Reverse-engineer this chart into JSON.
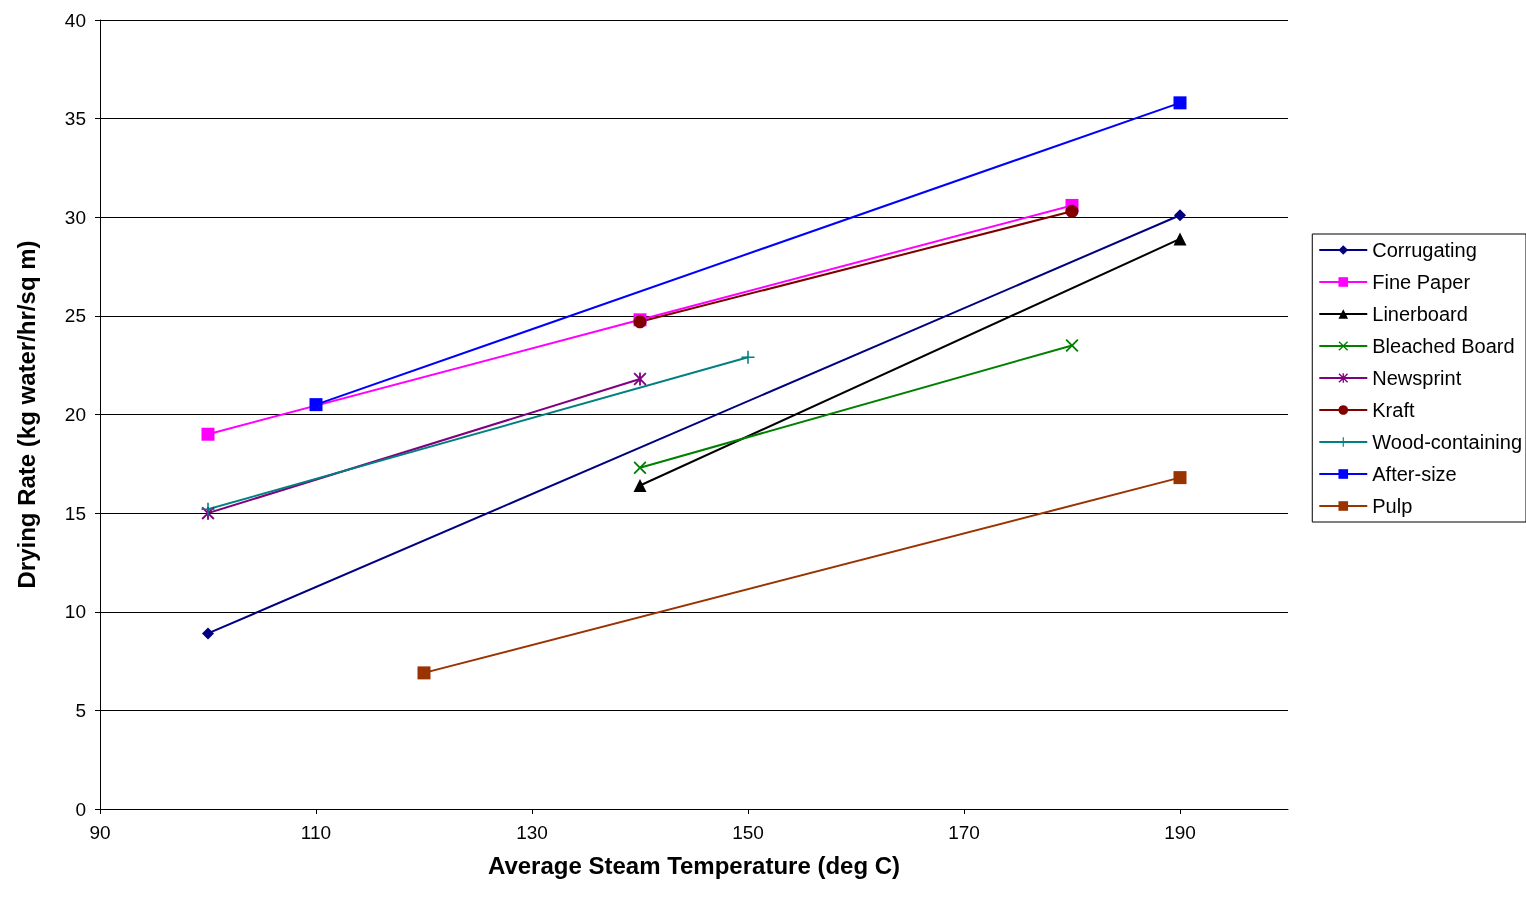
{
  "chart_data": {
    "type": "line",
    "xlabel": "Average Steam Temperature (deg C)",
    "ylabel": "Drying Rate (kg water/hr/sq m)",
    "xlim": [
      90,
      200
    ],
    "xticks": [
      90,
      110,
      130,
      150,
      170,
      190
    ],
    "ylim": [
      0,
      40
    ],
    "yticks": [
      0,
      5,
      10,
      15,
      20,
      25,
      30,
      35,
      40
    ],
    "grid": "y",
    "legend": "right",
    "line_style": "solid",
    "series": [
      {
        "name": "Corrugating",
        "color": "#000080",
        "marker": "diamond",
        "x": [
          100,
          190
        ],
        "values": [
          8.9,
          30.1
        ]
      },
      {
        "name": "Fine Paper",
        "color": "#ff00ff",
        "marker": "square",
        "x": [
          100,
          140,
          180
        ],
        "values": [
          19.0,
          24.8,
          30.6
        ]
      },
      {
        "name": "Linerboard",
        "color": "#000000",
        "marker": "triangle",
        "x": [
          140,
          190
        ],
        "values": [
          16.4,
          28.9
        ]
      },
      {
        "name": "Bleached Board",
        "color": "#008000",
        "marker": "cross",
        "x": [
          140,
          180
        ],
        "values": [
          17.3,
          23.5
        ]
      },
      {
        "name": "Newsprint",
        "color": "#800080",
        "marker": "star",
        "x": [
          100,
          140
        ],
        "values": [
          15.0,
          21.8
        ]
      },
      {
        "name": "Kraft",
        "color": "#800000",
        "marker": "circle",
        "x": [
          140,
          180
        ],
        "values": [
          24.7,
          30.3
        ]
      },
      {
        "name": "Wood-containing",
        "color": "#008080",
        "marker": "plus",
        "x": [
          100,
          150
        ],
        "values": [
          15.2,
          22.9
        ]
      },
      {
        "name": "After-size",
        "color": "#0000ff",
        "marker": "square",
        "x": [
          110,
          190
        ],
        "values": [
          20.5,
          35.8
        ]
      },
      {
        "name": "Pulp",
        "color": "#993300",
        "marker": "square",
        "x": [
          120,
          190
        ],
        "values": [
          6.9,
          16.8
        ]
      }
    ]
  }
}
